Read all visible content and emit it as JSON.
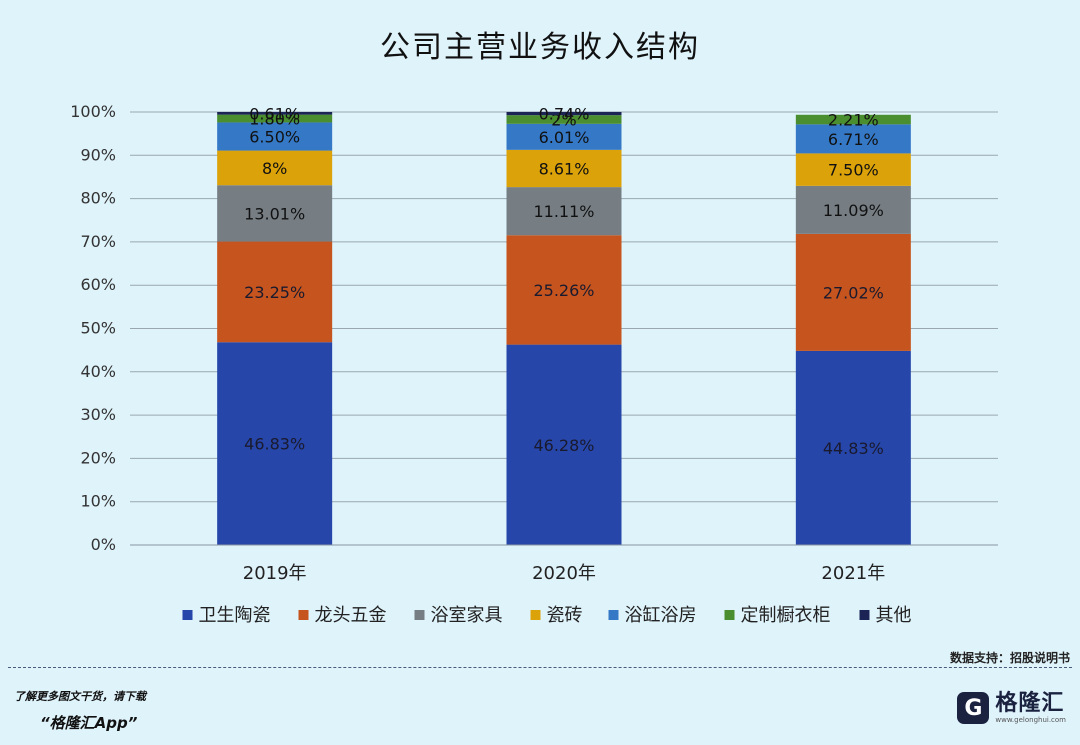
{
  "chart_data": {
    "type": "bar",
    "stacked": true,
    "title": "公司主营业务收入结构",
    "categories": [
      "2019年",
      "2020年",
      "2021年"
    ],
    "y_ticks": [
      "0%",
      "10%",
      "20%",
      "30%",
      "40%",
      "50%",
      "60%",
      "70%",
      "80%",
      "90%",
      "100%"
    ],
    "ylim": [
      0,
      100
    ],
    "grid": true,
    "legend_position": "bottom",
    "series": [
      {
        "name": "卫生陶瓷",
        "color": "#2646aa",
        "values": [
          46.83,
          46.28,
          44.83
        ],
        "labels": [
          "46.83%",
          "46.28%",
          "44.83%"
        ]
      },
      {
        "name": "龙头五金",
        "color": "#c5541e",
        "values": [
          23.25,
          25.26,
          27.02
        ],
        "labels": [
          "23.25%",
          "25.26%",
          "27.02%"
        ]
      },
      {
        "name": "浴室家具",
        "color": "#767e84",
        "values": [
          13.01,
          11.11,
          11.09
        ],
        "labels": [
          "13.01%",
          "11.11%",
          "11.09%"
        ]
      },
      {
        "name": "瓷砖",
        "color": "#dca209",
        "values": [
          8,
          8.61,
          7.5
        ],
        "labels": [
          "8%",
          "8.61%",
          "7.50%"
        ]
      },
      {
        "name": "浴缸浴房",
        "color": "#3478c6",
        "values": [
          6.5,
          6.01,
          6.71
        ],
        "labels": [
          "6.50%",
          "6.01%",
          "6.71%"
        ]
      },
      {
        "name": "定制橱衣柜",
        "color": "#4a8e2f",
        "values": [
          1.8,
          2,
          2.21
        ],
        "labels": [
          "1.80%",
          "2%",
          "2.21%"
        ]
      },
      {
        "name": "其他",
        "color": "#1b2454",
        "values": [
          0.61,
          0.74,
          0
        ],
        "labels": [
          "0.61%",
          "0.74%",
          ""
        ]
      }
    ]
  },
  "footer": {
    "source": "数据支持：招股说明书",
    "promo_line1": "了解更多图文干货，请下载",
    "promo_line2": "“格隆汇App”",
    "brand_mark": "G",
    "brand_name": "格隆汇",
    "brand_url": "www.gelonghui.com"
  }
}
